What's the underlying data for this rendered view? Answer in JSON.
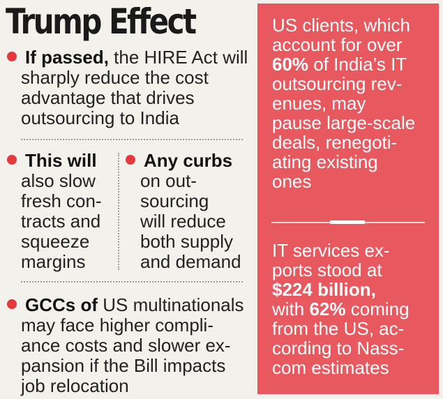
{
  "title": "Trump Effect",
  "bullets": {
    "b1": {
      "lead": "If passed,",
      "lines": [
        " the HIRE Act will",
        "sharply reduce the cost",
        "advantage that drives",
        "outsourcing to India"
      ]
    },
    "b2": {
      "lead": "This will",
      "lines": [
        "also slow",
        "fresh con-",
        "tracts and",
        "squeeze",
        "margins"
      ]
    },
    "b3": {
      "lead": "Any curbs",
      "lines": [
        "on out-",
        "sourcing",
        "will reduce",
        "both supply",
        "and demand"
      ]
    },
    "b4": {
      "lead": "GCCs of",
      "lines": [
        " US multinationals",
        "may face higher compli-",
        "ance costs and slower ex-",
        "pansion if the Bill impacts",
        "job relocation"
      ]
    }
  },
  "panel": {
    "top": {
      "l1": "US clients, which",
      "l2": "account for over",
      "l3_bold": "60%",
      "l3_rest": " of India’s IT",
      "l4": "outsourcing rev-",
      "l5": "enues, may",
      "l6": "pause large-scale",
      "l7": "deals, renegoti-",
      "l8": "ating existing",
      "l9": "ones"
    },
    "bottom": {
      "l1": "IT services ex-",
      "l2": "ports stood at",
      "l3_bold": "$224 billion,",
      "l4_pre": "with ",
      "l4_bold": "62%",
      "l4_rest": " coming",
      "l5": "from the US, ac-",
      "l6": "cording to Nass-",
      "l7": "com estimates"
    }
  },
  "colors": {
    "accent_red": "#e43a3d",
    "panel_bg": "#e8595f",
    "page_bg": "#f2f1ec"
  }
}
